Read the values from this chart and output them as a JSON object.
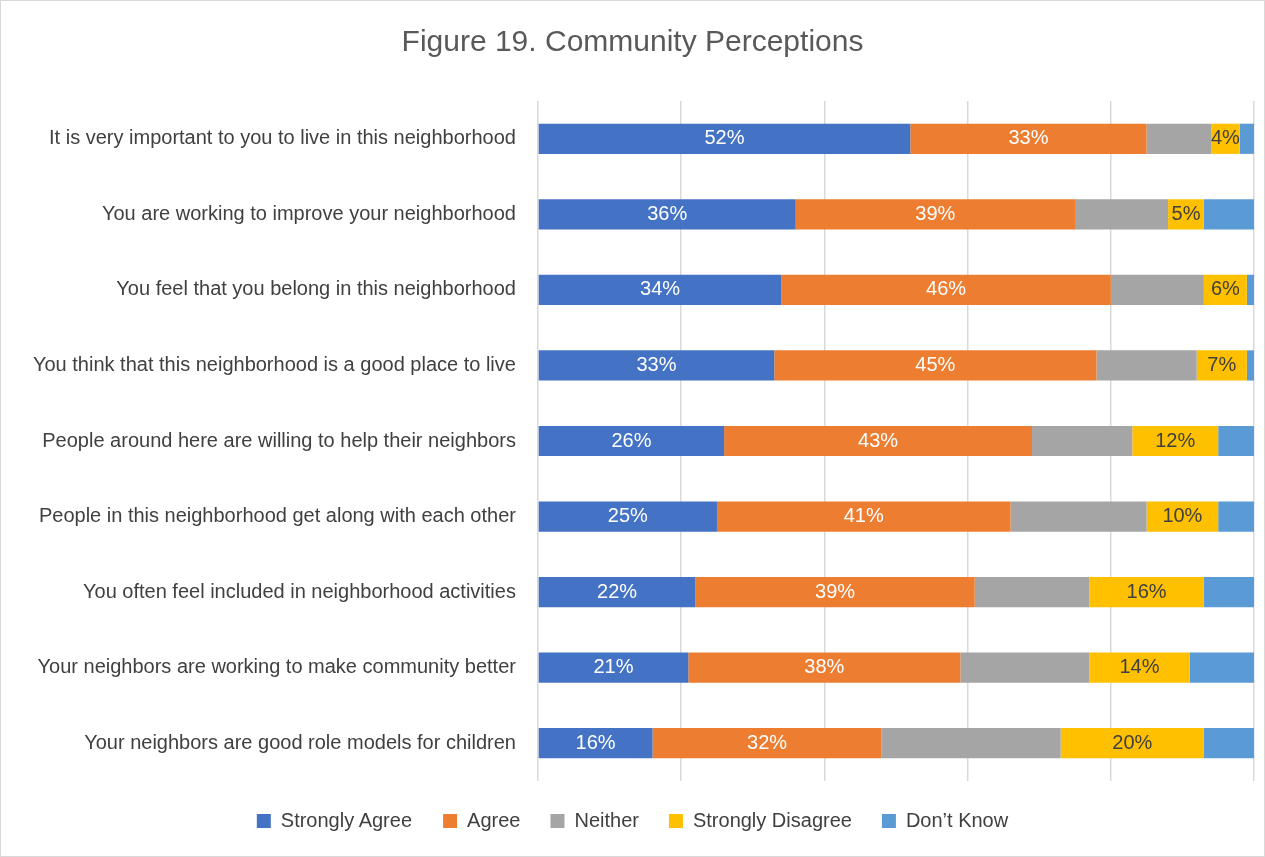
{
  "chart_data": {
    "type": "bar",
    "orientation": "horizontal",
    "stacked": true,
    "title": "Figure 19. Community Perceptions",
    "categories": [
      "It is very important to you to live in this neighborhood",
      "You are working to improve your neighborhood",
      "You feel that you belong in this neighborhood",
      "You think that this neighborhood is a good place to live",
      "People around here are willing to help their neighbors",
      "People in this neighborhood get along with each other",
      "You often feel included in neighborhood activities",
      "Your neighbors are working to make community better",
      "Your neighbors are good role models for children"
    ],
    "series": [
      {
        "name": "Strongly Agree",
        "color": "#4472c4",
        "values": [
          52,
          36,
          34,
          33,
          26,
          25,
          22,
          21,
          16
        ],
        "value_labels": [
          "52%",
          "36%",
          "34%",
          "33%",
          "26%",
          "25%",
          "22%",
          "21%",
          "16%"
        ]
      },
      {
        "name": "Agree",
        "color": "#ed7d31",
        "values": [
          33,
          39,
          46,
          45,
          43,
          41,
          39,
          38,
          32
        ],
        "value_labels": [
          "33%",
          "39%",
          "46%",
          "45%",
          "43%",
          "41%",
          "39%",
          "38%",
          "32%"
        ]
      },
      {
        "name": "Neither",
        "color": "#a5a5a5",
        "values": [
          9,
          13,
          13,
          14,
          14,
          19,
          16,
          18,
          25
        ]
      },
      {
        "name": "Strongly Disagree",
        "color": "#ffc000",
        "values": [
          4,
          5,
          6,
          7,
          12,
          10,
          16,
          14,
          20
        ],
        "value_labels": [
          "4%",
          "5%",
          "6%",
          "7%",
          "12%",
          "10%",
          "16%",
          "14%",
          "20%"
        ]
      },
      {
        "name": "Don’t Know",
        "color": "#5b9bd5",
        "values": [
          2,
          7,
          1,
          1,
          5,
          5,
          7,
          9,
          7
        ]
      }
    ],
    "xlim": [
      0,
      100
    ],
    "xticks": [
      {
        "value": 0,
        "label": null
      },
      {
        "value": 20,
        "label": null
      },
      {
        "value": 40,
        "label": null
      },
      {
        "value": 60,
        "label": null
      },
      {
        "value": 80,
        "label": null
      },
      {
        "value": 100,
        "label": null
      }
    ],
    "tick_labels": "y",
    "grid": "x",
    "legend": "bottom"
  }
}
